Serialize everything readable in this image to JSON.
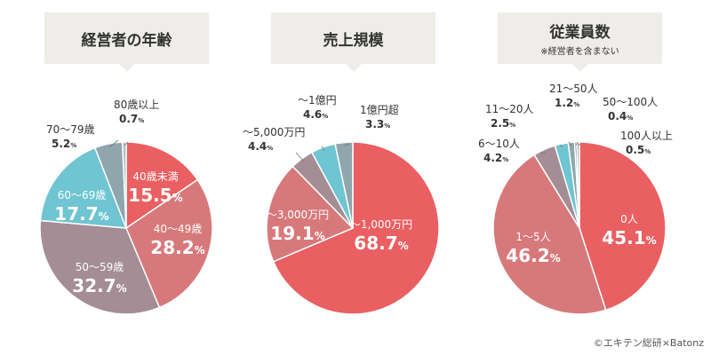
{
  "footer": {
    "credit": "©エキテン総研×Batonz"
  },
  "colors": {
    "red": "#ea5f62",
    "rose": "#d7797b",
    "mauve": "#a48d94",
    "cyan": "#6fc5d1",
    "gray": "#8fa6ac",
    "lightgray": "#b9b9b9",
    "darkgray": "#7b8184",
    "label_dark": "#333333",
    "label_light": "#ffffff"
  },
  "chart_data": [
    {
      "type": "pie",
      "title": "経営者の年齢",
      "subtitle": "",
      "slices": [
        {
          "label": "40歳未満",
          "value": 15.5,
          "display": "15.5%",
          "color": "#ea5f62"
        },
        {
          "label": "40〜49歳",
          "value": 28.2,
          "display": "28.2%",
          "color": "#d7797b"
        },
        {
          "label": "50〜59歳",
          "value": 32.7,
          "display": "32.7%",
          "color": "#a48d94"
        },
        {
          "label": "60〜69歳",
          "value": 17.7,
          "display": "17.7%",
          "color": "#6fc5d1"
        },
        {
          "label": "70〜79歳",
          "value": 5.2,
          "display": "5.2%",
          "color": "#8fa6ac"
        },
        {
          "label": "80歳以上",
          "value": 0.7,
          "display": "0.7%",
          "color": "#b9b9b9"
        }
      ]
    },
    {
      "type": "pie",
      "title": "売上規模",
      "subtitle": "",
      "slices": [
        {
          "label": "〜1,000万円",
          "value": 68.7,
          "display": "68.7%",
          "color": "#ea5f62"
        },
        {
          "label": "〜3,000万円",
          "value": 19.1,
          "display": "19.1%",
          "color": "#d7797b"
        },
        {
          "label": "〜5,000万円",
          "value": 4.4,
          "display": "4.4%",
          "color": "#a48d94"
        },
        {
          "label": "〜1億円",
          "value": 4.6,
          "display": "4.6%",
          "color": "#6fc5d1"
        },
        {
          "label": "1億円超",
          "value": 3.3,
          "display": "3.3%",
          "color": "#8fa6ac"
        }
      ]
    },
    {
      "type": "pie",
      "title": "従業員数",
      "subtitle": "※経営者を含まない",
      "slices": [
        {
          "label": "0人",
          "value": 45.1,
          "display": "45.1%",
          "color": "#ea5f62"
        },
        {
          "label": "1〜5人",
          "value": 46.2,
          "display": "46.2%",
          "color": "#d7797b"
        },
        {
          "label": "6〜10人",
          "value": 4.2,
          "display": "4.2%",
          "color": "#a48d94"
        },
        {
          "label": "11〜20人",
          "value": 2.5,
          "display": "2.5%",
          "color": "#6fc5d1"
        },
        {
          "label": "21〜50人",
          "value": 1.2,
          "display": "1.2%",
          "color": "#8fa6ac"
        },
        {
          "label": "50〜100人",
          "value": 0.4,
          "display": "0.4%",
          "color": "#7b8184"
        },
        {
          "label": "100人以上",
          "value": 0.5,
          "display": "0.5%",
          "color": "#b9b9b9"
        }
      ]
    }
  ]
}
